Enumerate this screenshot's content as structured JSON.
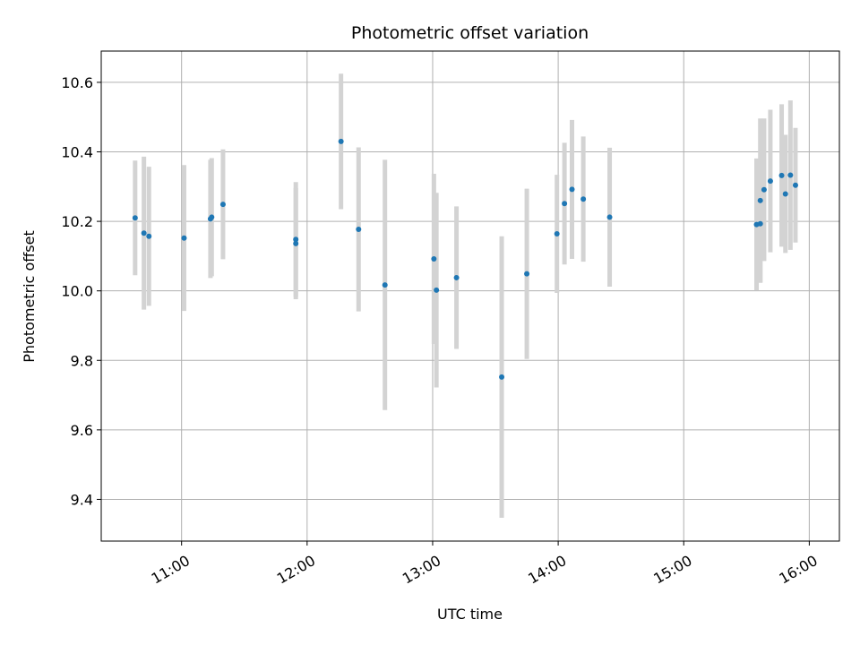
{
  "chart_data": {
    "type": "scatter",
    "title": "Photometric offset variation",
    "xlabel": "UTC time",
    "ylabel": "Photometric offset",
    "x_tick_labels": [
      "11:00",
      "12:00",
      "13:00",
      "14:00",
      "15:00",
      "16:00"
    ],
    "x_tick_values": [
      11.0,
      12.0,
      13.0,
      14.0,
      15.0,
      16.0
    ],
    "y_tick_labels": [
      "9.4",
      "9.6",
      "9.8",
      "10.0",
      "10.2",
      "10.4",
      "10.6"
    ],
    "y_tick_values": [
      9.4,
      9.6,
      9.8,
      10.0,
      10.2,
      10.4,
      10.6
    ],
    "xlim": [
      10.36,
      16.24
    ],
    "ylim": [
      9.28,
      10.69
    ],
    "grid": true,
    "marker_color": "#1f77b4",
    "errorbar_color": "#d3d3d3",
    "points": [
      {
        "x": 10.63,
        "y": 10.21,
        "err": 0.165
      },
      {
        "x": 10.7,
        "y": 10.166,
        "err": 0.22
      },
      {
        "x": 10.74,
        "y": 10.157,
        "err": 0.2
      },
      {
        "x": 11.02,
        "y": 10.152,
        "err": 0.21
      },
      {
        "x": 11.23,
        "y": 10.207,
        "err": 0.17
      },
      {
        "x": 11.24,
        "y": 10.212,
        "err": 0.17
      },
      {
        "x": 11.33,
        "y": 10.249,
        "err": 0.158
      },
      {
        "x": 11.91,
        "y": 10.148,
        "err": 0.165
      },
      {
        "x": 11.91,
        "y": 10.136,
        "err": 0.16
      },
      {
        "x": 12.27,
        "y": 10.43,
        "err": 0.195
      },
      {
        "x": 12.41,
        "y": 10.177,
        "err": 0.236
      },
      {
        "x": 12.62,
        "y": 10.017,
        "err": 0.36
      },
      {
        "x": 13.01,
        "y": 10.092,
        "err": 0.245
      },
      {
        "x": 13.03,
        "y": 10.002,
        "err": 0.28
      },
      {
        "x": 13.19,
        "y": 10.038,
        "err": 0.205
      },
      {
        "x": 13.55,
        "y": 9.752,
        "err": 0.405
      },
      {
        "x": 13.75,
        "y": 10.049,
        "err": 0.245
      },
      {
        "x": 13.99,
        "y": 10.164,
        "err": 0.17
      },
      {
        "x": 14.05,
        "y": 10.251,
        "err": 0.175
      },
      {
        "x": 14.11,
        "y": 10.292,
        "err": 0.2
      },
      {
        "x": 14.2,
        "y": 10.264,
        "err": 0.18
      },
      {
        "x": 14.41,
        "y": 10.212,
        "err": 0.2
      },
      {
        "x": 15.58,
        "y": 10.191,
        "err": 0.19
      },
      {
        "x": 15.61,
        "y": 10.193,
        "err": 0.17
      },
      {
        "x": 15.61,
        "y": 10.26,
        "err": 0.236
      },
      {
        "x": 15.64,
        "y": 10.291,
        "err": 0.205
      },
      {
        "x": 15.69,
        "y": 10.316,
        "err": 0.205
      },
      {
        "x": 15.78,
        "y": 10.332,
        "err": 0.205
      },
      {
        "x": 15.81,
        "y": 10.279,
        "err": 0.17
      },
      {
        "x": 15.85,
        "y": 10.333,
        "err": 0.215
      },
      {
        "x": 15.89,
        "y": 10.304,
        "err": 0.165
      }
    ]
  }
}
